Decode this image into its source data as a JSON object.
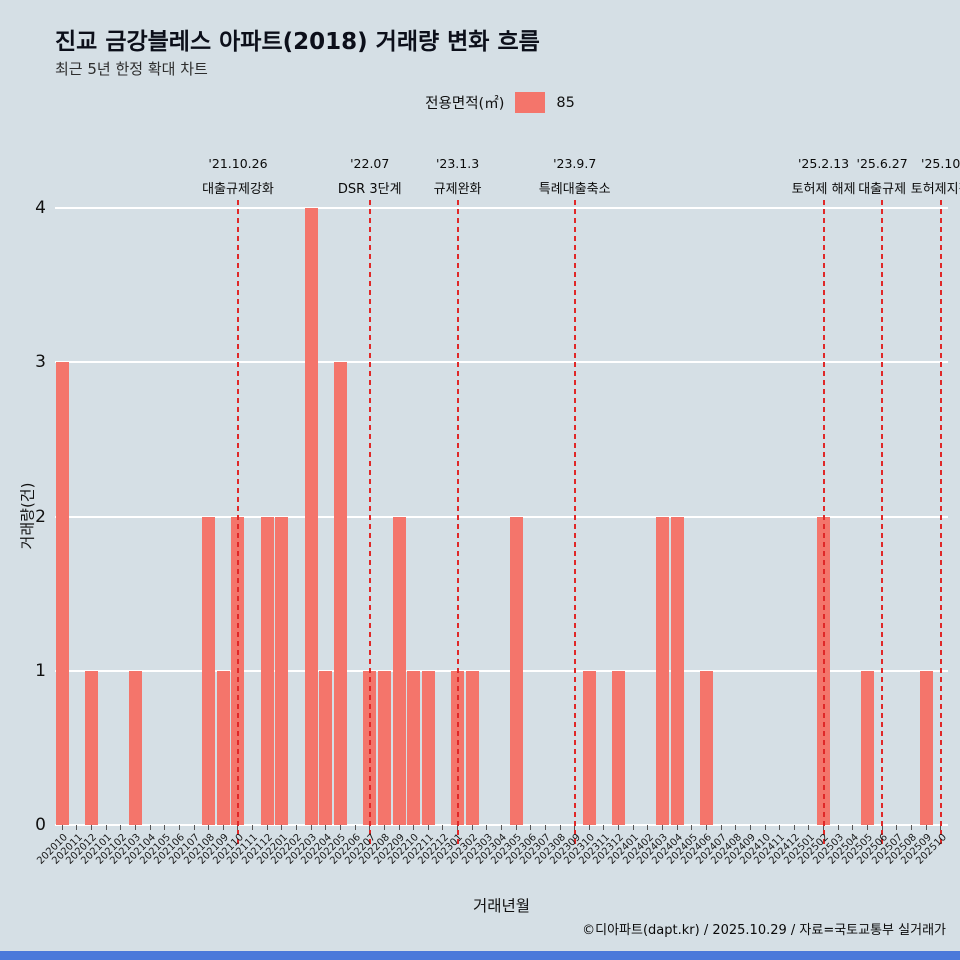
{
  "page": {
    "title": "진교 금강블레스 아파트(2018) 거래량 변화 흐름",
    "subtitle": "최근 5년 한정 확대 차트",
    "footer": "©디아파트(dapt.kr) / 2025.10.29 / 자료=국토교통부 실거래가"
  },
  "legend": {
    "label": "전용면적(㎡)",
    "value": "85"
  },
  "colors": {
    "background": "#d5dfe5",
    "bar": "#f4756b",
    "annotation_line": "#e02828",
    "gridline": "#ffffff",
    "bottom_bar": "#4a79da",
    "title_text": "#0c0f1a"
  },
  "chart_data": {
    "type": "bar",
    "title": "진교 금강블레스 아파트(2018) 거래량 변화 흐름",
    "subtitle": "최근 5년 한정 확대 차트",
    "xlabel": "거래년월",
    "ylabel": "거래량(건)",
    "ylim": [
      0,
      4
    ],
    "yticks": [
      0,
      1,
      2,
      3,
      4
    ],
    "grid": "horizontal-white",
    "legend_label": "전용면적(㎡)",
    "series_name": "85",
    "legend_position": "top-center",
    "categories": [
      "202010",
      "202011",
      "202012",
      "202101",
      "202102",
      "202103",
      "202104",
      "202105",
      "202106",
      "202107",
      "202108",
      "202109",
      "202110",
      "202111",
      "202112",
      "202201",
      "202202",
      "202203",
      "202204",
      "202205",
      "202206",
      "202207",
      "202208",
      "202209",
      "202210",
      "202211",
      "202212",
      "202301",
      "202302",
      "202303",
      "202304",
      "202305",
      "202306",
      "202307",
      "202308",
      "202309",
      "202310",
      "202311",
      "202312",
      "202401",
      "202402",
      "202403",
      "202404",
      "202405",
      "202406",
      "202407",
      "202408",
      "202409",
      "202410",
      "202411",
      "202412",
      "202501",
      "202502",
      "202503",
      "202504",
      "202505",
      "202506",
      "202507",
      "202508",
      "202509",
      "202510"
    ],
    "values": [
      3,
      0,
      1,
      0,
      0,
      1,
      0,
      0,
      0,
      0,
      2,
      1,
      2,
      0,
      2,
      2,
      0,
      4,
      1,
      3,
      0,
      1,
      1,
      2,
      1,
      1,
      0,
      1,
      1,
      0,
      0,
      2,
      0,
      0,
      0,
      0,
      1,
      0,
      1,
      0,
      0,
      2,
      2,
      0,
      1,
      0,
      0,
      0,
      0,
      0,
      0,
      0,
      2,
      0,
      0,
      1,
      0,
      0,
      0,
      1,
      0
    ],
    "annotations": [
      {
        "month": "202110",
        "date": "'21.10.26",
        "label": "대출규제강화"
      },
      {
        "month": "202207",
        "date": "'22.07",
        "label": "DSR 3단계"
      },
      {
        "month": "202301",
        "date": "'23.1.3",
        "label": "규제완화"
      },
      {
        "month": "202309",
        "date": "'23.9.7",
        "label": "특례대출축소"
      },
      {
        "month": "202502",
        "date": "'25.2.13",
        "label": "토허제 해제"
      },
      {
        "month": "202506",
        "date": "'25.6.27",
        "label": "대출규제"
      },
      {
        "month": "202510",
        "date": "'25.10",
        "label": "토허제지정"
      }
    ]
  }
}
